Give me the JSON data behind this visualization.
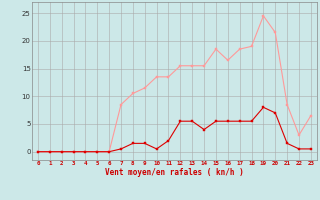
{
  "x": [
    0,
    1,
    2,
    3,
    4,
    5,
    6,
    7,
    8,
    9,
    10,
    11,
    12,
    13,
    14,
    15,
    16,
    17,
    18,
    19,
    20,
    21,
    22,
    23
  ],
  "rafales": [
    0,
    0,
    0,
    0,
    0,
    0,
    0,
    8.5,
    10.5,
    11.5,
    13.5,
    13.5,
    15.5,
    15.5,
    15.5,
    18.5,
    16.5,
    18.5,
    19.0,
    24.5,
    21.5,
    8.5,
    3.0,
    6.5
  ],
  "vent_moyen": [
    0,
    0,
    0,
    0,
    0,
    0,
    0,
    0.5,
    1.5,
    1.5,
    0.5,
    2.0,
    5.5,
    5.5,
    4.0,
    5.5,
    5.5,
    5.5,
    5.5,
    8.0,
    7.0,
    1.5,
    0.5,
    0.5
  ],
  "bg_color": "#cce8e8",
  "grid_color": "#aaaaaa",
  "line_color_rafales": "#ff9999",
  "line_color_vent": "#dd0000",
  "xlabel": "Vent moyen/en rafales ( kn/h )",
  "ylim": [
    -1.5,
    27
  ],
  "xlim": [
    -0.5,
    23.5
  ],
  "yticks": [
    0,
    5,
    10,
    15,
    20,
    25
  ],
  "xticks": [
    0,
    1,
    2,
    3,
    4,
    5,
    6,
    7,
    8,
    9,
    10,
    11,
    12,
    13,
    14,
    15,
    16,
    17,
    18,
    19,
    20,
    21,
    22,
    23
  ]
}
